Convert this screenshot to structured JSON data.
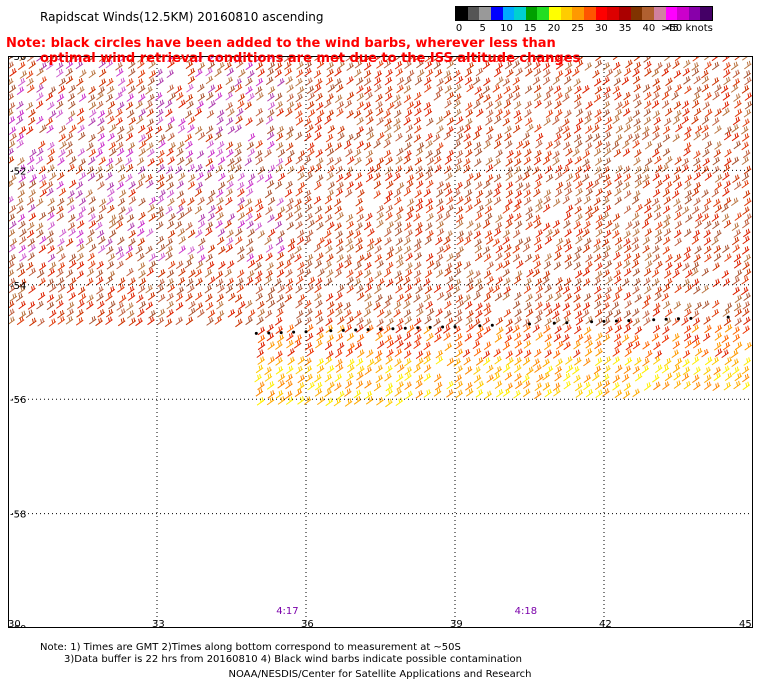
{
  "title": "Rapidscat Winds(12.5KM) 20160810 ascending",
  "note_line1": "Note: black circles have been added to the wind barbs, wherever less than",
  "note_line2": "optimal wind retrieval conditions are met due to the ISS altitude changes",
  "legend": {
    "colors": [
      "#000000",
      "#555555",
      "#999999",
      "#0000ff",
      "#00aaff",
      "#00d0d0",
      "#00a000",
      "#22dd22",
      "#ffff00",
      "#ffcc00",
      "#ff9900",
      "#ff5500",
      "#ff0000",
      "#dd0000",
      "#aa0000",
      "#803300",
      "#b06030",
      "#d080a0",
      "#ff00ff",
      "#cc00cc",
      "#8800aa",
      "#440066"
    ],
    "labels": [
      "0",
      "5",
      "10",
      "15",
      "20",
      "25",
      "30",
      "35",
      "40",
      "45",
      ">50 knots"
    ]
  },
  "y_labels": [
    "-50",
    "-52",
    "-54",
    "-56",
    "-58",
    "-60"
  ],
  "x_labels": [
    "30",
    "33",
    "36",
    "39",
    "42",
    "45"
  ],
  "time_labels": [
    "4:17",
    "4:18"
  ],
  "footnote_line1": "Note: 1) Times are GMT 2)Times along bottom correspond to measurement at ~50S",
  "footnote_line2": "3)Data buffer is 22 hrs from 20160810 4) Black wind barbs indicate possible contamination",
  "credit": "NOAA/NESDIS/Center for Satellite Applications and Research",
  "colors": {
    "plot_border": "#000000",
    "grid": "#000000",
    "time_label": "#7a00aa"
  }
}
